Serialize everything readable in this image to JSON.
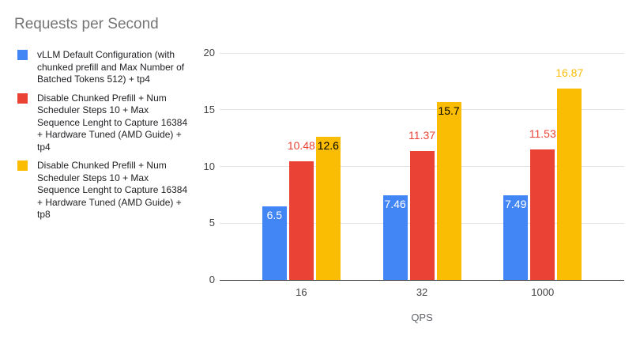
{
  "title": "Requests per Second",
  "chart_data": {
    "type": "bar",
    "title": "Requests per Second",
    "xlabel": "QPS",
    "ylabel": "",
    "categories": [
      "16",
      "32",
      "1000"
    ],
    "ylim": [
      0,
      20
    ],
    "yticks": [
      0,
      5,
      10,
      15,
      20
    ],
    "grid": true,
    "legend_position": "left",
    "series": [
      {
        "name": "vLLM Default Configuration (with chunked prefill and Max Number of Batched Tokens 512) + tp4",
        "color": "#4285F4",
        "values": [
          6.5,
          7.46,
          7.49
        ],
        "labels": [
          "6.5",
          "7.46",
          "7.49"
        ],
        "label_placement": [
          "inside",
          "inside",
          "inside"
        ],
        "inside_label_color": "#ffffff"
      },
      {
        "name": "Disable Chunked Prefill + Num Scheduler Steps 10 + Max Sequence Lenght to Capture 16384 + Hardware Tuned (AMD Guide) + tp4",
        "color": "#EA4335",
        "values": [
          10.48,
          11.37,
          11.53
        ],
        "labels": [
          "10.48",
          "11.37",
          "11.53"
        ],
        "label_placement": [
          "above",
          "above",
          "above"
        ],
        "inside_label_color": "#000000"
      },
      {
        "name": "Disable Chunked Prefill + Num Scheduler Steps 10 + Max Sequence Lenght to Capture 16384 + Hardware Tuned (AMD Guide) + tp8",
        "color": "#FBBC04",
        "values": [
          12.6,
          15.7,
          16.87
        ],
        "labels": [
          "12.6",
          "15.7",
          "16.87"
        ],
        "label_placement": [
          "inside",
          "inside",
          "above"
        ],
        "inside_label_color": "#000000"
      }
    ]
  },
  "colors": {
    "background": "#ffffff",
    "title_text": "#757575",
    "legend_text": "#202124",
    "axis_text": "#424242",
    "axis_title_text": "#5f6368",
    "gridline": "#e3e3e3",
    "baseline": "#333333"
  }
}
